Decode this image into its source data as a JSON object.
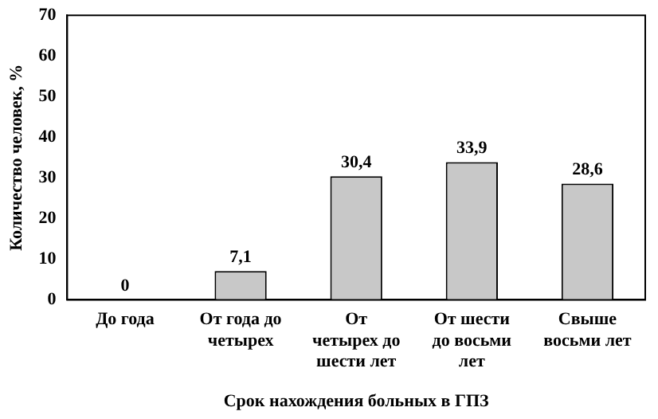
{
  "chart_data": {
    "type": "bar",
    "xlabel": "Срок нахождения больных в ГПЗ",
    "ylabel": "Количество человек, %",
    "categories": [
      "До года",
      "От года до четырех",
      "От четырех до шести лет",
      "От шести до восьми лет",
      "Свыше восьми лет"
    ],
    "values": [
      0,
      7.1,
      30.4,
      33.9,
      28.6
    ],
    "value_labels": [
      "0",
      "7,1",
      "30,4",
      "33,9",
      "28,6"
    ],
    "color": "#c8c8c8",
    "ylim": [
      0,
      70
    ],
    "yticks": [
      0,
      10,
      20,
      30,
      40,
      50,
      60,
      70
    ],
    "grid": false,
    "legend": false
  }
}
